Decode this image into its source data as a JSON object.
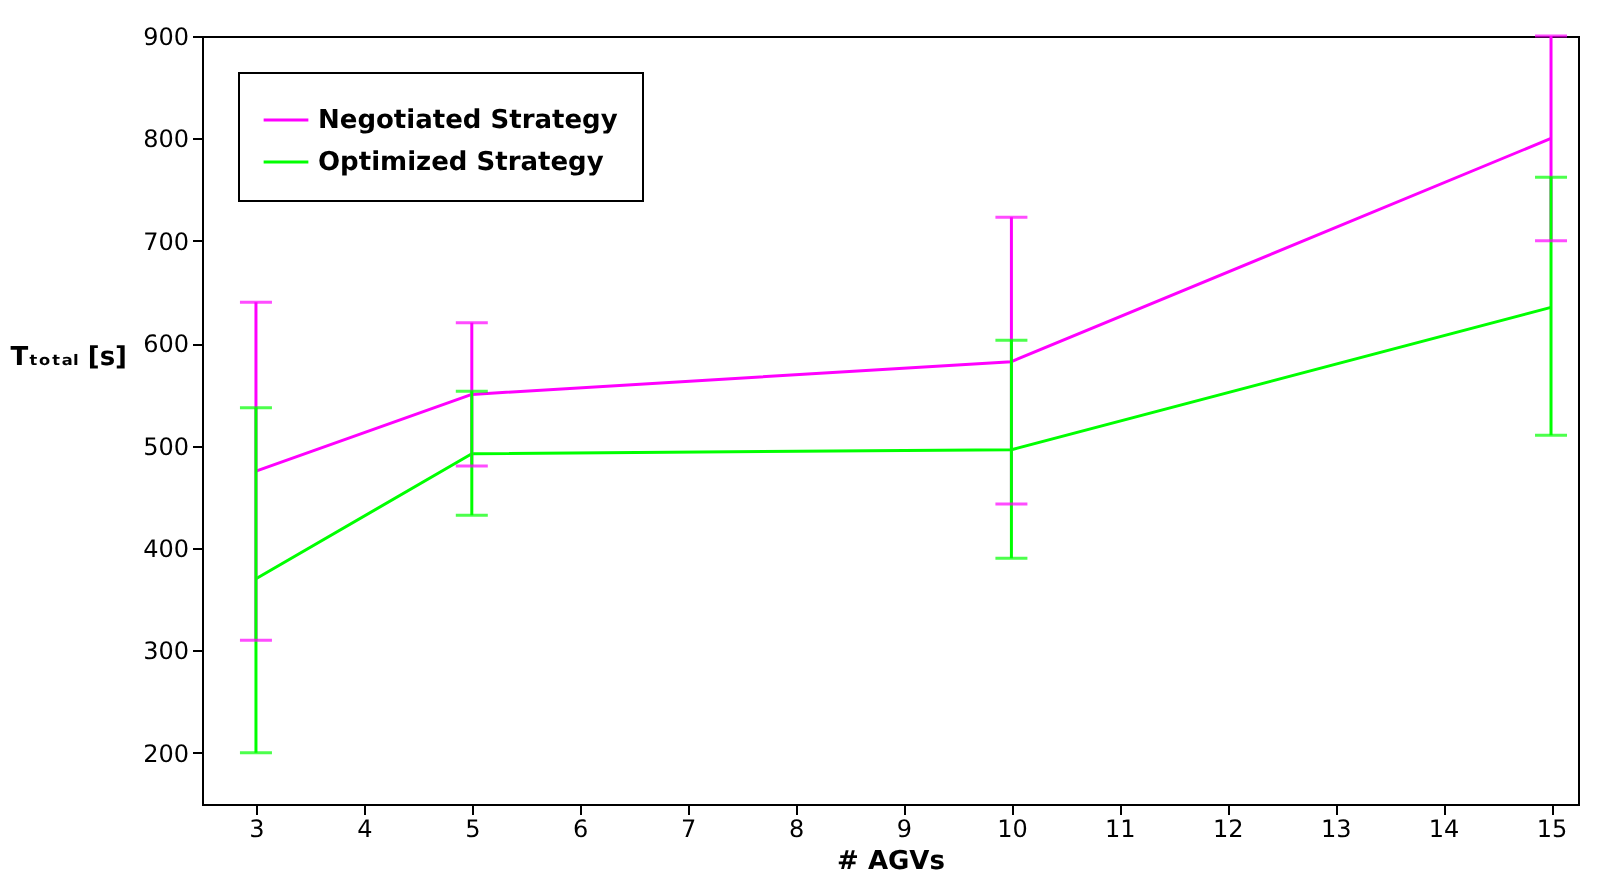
{
  "chart_data": {
    "type": "line",
    "xlabel": "# AGVs",
    "ylabel": "Tₜₒₜₐₗ [s]",
    "x": [
      3,
      5,
      10,
      15
    ],
    "series": [
      {
        "name": "Negotiated Strategy",
        "color": "#ff00ff",
        "values": [
          475,
          550,
          582,
          800
        ],
        "errors": [
          [
            310,
            640
          ],
          [
            480,
            620
          ],
          [
            443,
            723
          ],
          [
            700,
            900
          ]
        ]
      },
      {
        "name": "Optimized Strategy",
        "color": "#00ff00",
        "values": [
          370,
          492,
          496,
          635
        ],
        "errors": [
          [
            200,
            537
          ],
          [
            432,
            553
          ],
          [
            390,
            603
          ],
          [
            510,
            762
          ]
        ]
      }
    ],
    "xlim": [
      2.5,
      15.25
    ],
    "xticks": [
      3,
      4,
      5,
      6,
      7,
      8,
      9,
      10,
      11,
      12,
      13,
      14,
      15
    ],
    "ylim": [
      150,
      900
    ],
    "yticks": [
      200,
      300,
      400,
      500,
      600,
      700,
      800,
      900
    ],
    "grid": false,
    "legend": "top left",
    "marker": "none",
    "line_style": "solid"
  }
}
